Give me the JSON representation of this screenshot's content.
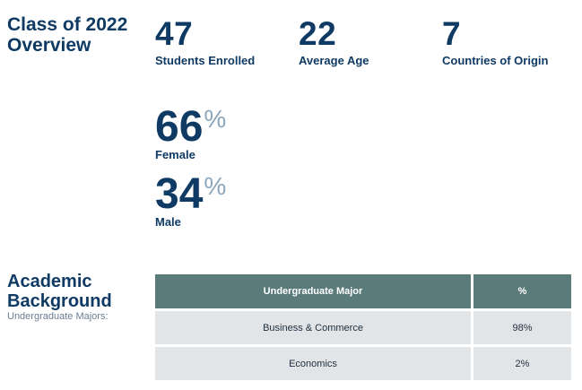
{
  "header": {
    "title": "Class of 2022 Overview"
  },
  "stats": [
    {
      "value": "47",
      "label": "Students Enrolled"
    },
    {
      "value": "22",
      "label": "Average Age"
    },
    {
      "value": "7",
      "label": "Countries of Origin"
    }
  ],
  "gender": [
    {
      "value": "66",
      "symbol": "%",
      "label": "Female"
    },
    {
      "value": "34",
      "symbol": "%",
      "label": "Male"
    }
  ],
  "academic": {
    "title": "Academic Background",
    "subtitle": "Undergraduate Majors:",
    "headers": [
      "Undergraduate Major",
      "%"
    ],
    "rows": [
      [
        "Business & Commerce",
        "98%"
      ],
      [
        "Economics",
        "2%"
      ]
    ]
  },
  "colors": {
    "navy": "#0f3a63",
    "percent_symbol": "#8ba6bd",
    "table_header": "#5a7b7a",
    "table_cell": "#e2e5e7"
  }
}
